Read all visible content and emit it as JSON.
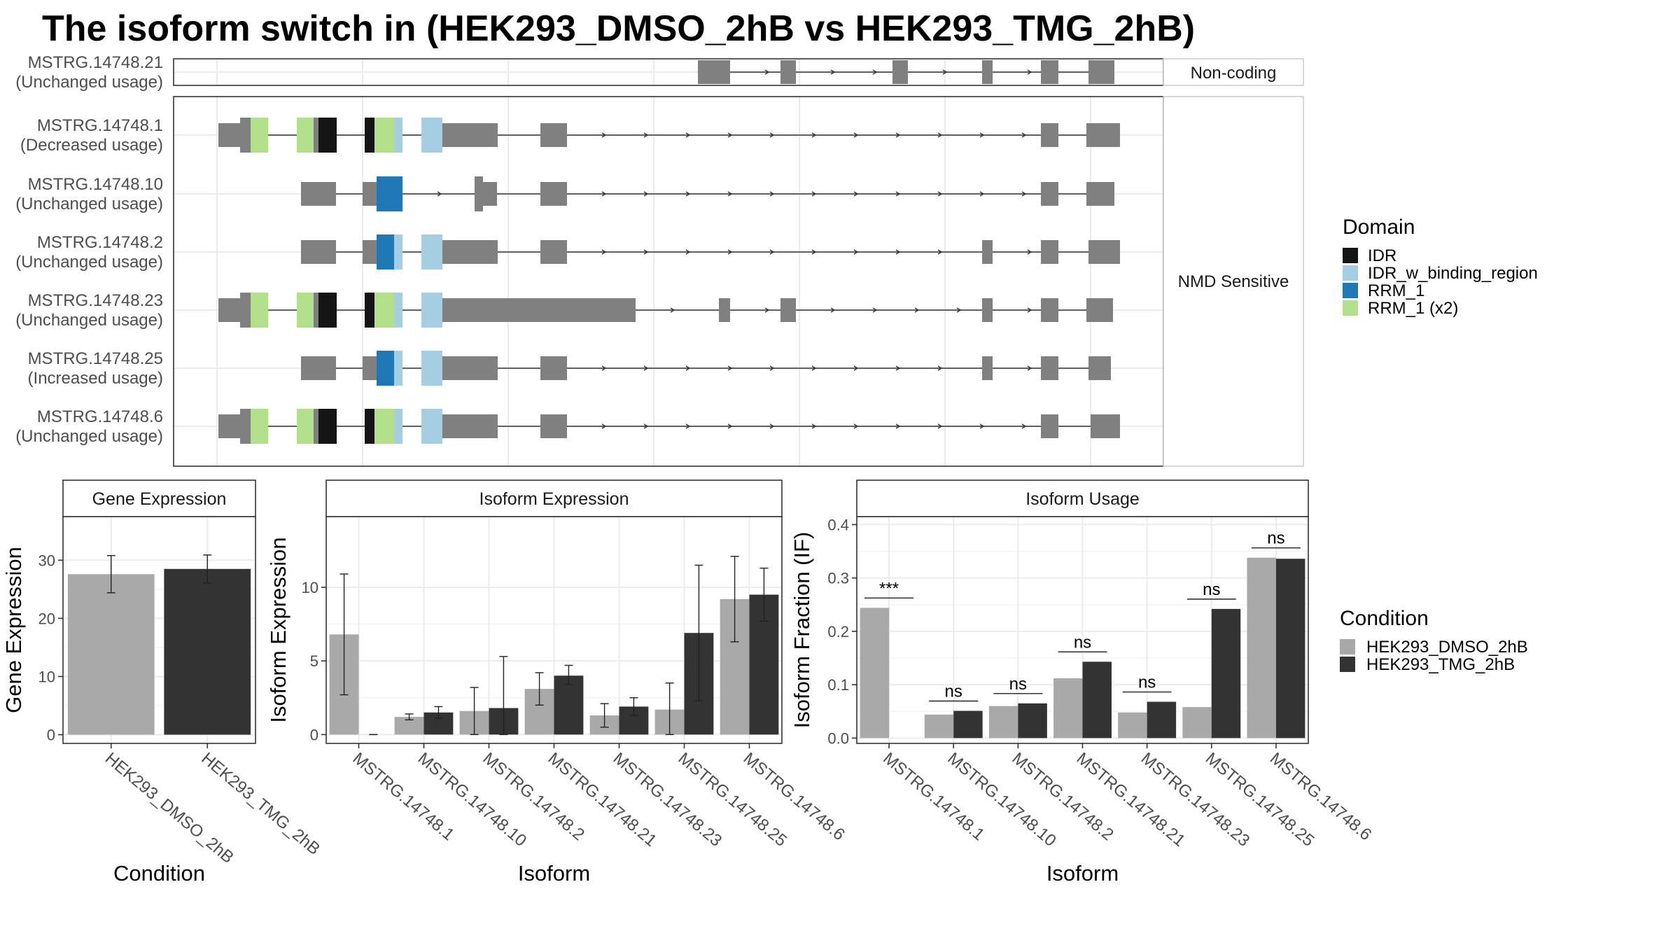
{
  "title": "The isoform switch in  (HEK293_DMSO_2hB vs HEK293_TMG_2hB)",
  "colors": {
    "exon": "#808080",
    "IDR": "#141414",
    "IDR_w_binding_region": "#a6cee3",
    "RRM_1": "#1f78b4",
    "RRM_1 (x2)": "#b2df8a",
    "HEK293_DMSO_2hB": "#a9a9a9",
    "HEK293_TMG_2hB": "#333333",
    "panel_border": "#333333",
    "grid": "#ebebeb"
  },
  "transcripts": {
    "facets": [
      "Non-coding",
      "NMD Sensitive"
    ],
    "rows": [
      {
        "id": "MSTRG.14748.21",
        "usage": "(Unchanged usage)",
        "facet": "Non-coding"
      },
      {
        "id": "MSTRG.14748.1",
        "usage": "(Decreased usage)",
        "facet": "NMD Sensitive"
      },
      {
        "id": "MSTRG.14748.10",
        "usage": "(Unchanged usage)",
        "facet": "NMD Sensitive"
      },
      {
        "id": "MSTRG.14748.2",
        "usage": "(Unchanged usage)",
        "facet": "NMD Sensitive"
      },
      {
        "id": "MSTRG.14748.23",
        "usage": "(Unchanged usage)",
        "facet": "NMD Sensitive"
      },
      {
        "id": "MSTRG.14748.25",
        "usage": "(Increased usage)",
        "facet": "NMD Sensitive"
      },
      {
        "id": "MSTRG.14748.6",
        "usage": "(Unchanged usage)",
        "facet": "NMD Sensitive"
      }
    ]
  },
  "domain_legend": {
    "title": "Domain",
    "items": [
      "IDR",
      "IDR_w_binding_region",
      "RRM_1",
      "RRM_1 (x2)"
    ]
  },
  "condition_legend": {
    "title": "Condition",
    "items": [
      "HEK293_DMSO_2hB",
      "HEK293_TMG_2hB"
    ]
  },
  "chart_data": [
    {
      "type": "bar",
      "title": "Gene Expression",
      "xlabel": "Condition",
      "ylabel": "Gene Expression",
      "categories": [
        "HEK293_DMSO_2hB",
        "HEK293_TMG_2hB"
      ],
      "values": [
        27.6,
        28.5
      ],
      "error_low": [
        24.4,
        26.1
      ],
      "error_high": [
        30.8,
        30.9
      ],
      "yticks": [
        0,
        10,
        20,
        30
      ],
      "ylim": [
        -1.5,
        37.5
      ]
    },
    {
      "type": "bar",
      "title": "Isoform Expression",
      "xlabel": "Isoform",
      "ylabel": "Isoform Expression",
      "categories": [
        "MSTRG.14748.1",
        "MSTRG.14748.10",
        "MSTRG.14748.2",
        "MSTRG.14748.21",
        "MSTRG.14748.23",
        "MSTRG.14748.25",
        "MSTRG.14748.6"
      ],
      "series": [
        {
          "name": "HEK293_DMSO_2hB",
          "values": [
            6.8,
            1.2,
            1.6,
            3.1,
            1.3,
            1.7,
            9.2
          ],
          "error_low": [
            2.7,
            1.0,
            0.0,
            2.0,
            0.5,
            0.0,
            6.3
          ],
          "error_high": [
            10.9,
            1.4,
            3.2,
            4.2,
            2.1,
            3.5,
            12.1
          ]
        },
        {
          "name": "HEK293_TMG_2hB",
          "values": [
            0.0,
            1.5,
            1.8,
            4.0,
            1.9,
            6.9,
            9.5
          ],
          "error_low": [
            0.0,
            1.1,
            0.0,
            3.4,
            1.3,
            2.3,
            7.7
          ],
          "error_high": [
            0.0,
            1.9,
            5.3,
            4.7,
            2.5,
            11.5,
            11.3
          ]
        }
      ],
      "yticks": [
        0,
        5,
        10
      ],
      "ylim": [
        -0.6,
        14.8
      ]
    },
    {
      "type": "bar",
      "title": "Isoform Usage",
      "xlabel": "Isoform",
      "ylabel": "Isoform Fraction (IF)",
      "categories": [
        "MSTRG.14748.1",
        "MSTRG.14748.10",
        "MSTRG.14748.2",
        "MSTRG.14748.21",
        "MSTRG.14748.23",
        "MSTRG.14748.25",
        "MSTRG.14748.6"
      ],
      "series": [
        {
          "name": "HEK293_DMSO_2hB",
          "values": [
            0.244,
            0.044,
            0.06,
            0.112,
            0.048,
            0.058,
            0.338
          ]
        },
        {
          "name": "HEK293_TMG_2hB",
          "values": [
            0.0,
            0.051,
            0.065,
            0.143,
            0.068,
            0.242,
            0.336
          ]
        }
      ],
      "significance": [
        "***",
        "ns",
        "ns",
        "ns",
        "ns",
        "ns",
        "ns"
      ],
      "yticks": [
        0.0,
        0.1,
        0.2,
        0.3,
        0.4
      ],
      "ytick_labels": [
        "0.0",
        "0.1",
        "0.2",
        "0.3",
        "0.4"
      ],
      "ylim": [
        -0.01,
        0.415
      ]
    }
  ]
}
